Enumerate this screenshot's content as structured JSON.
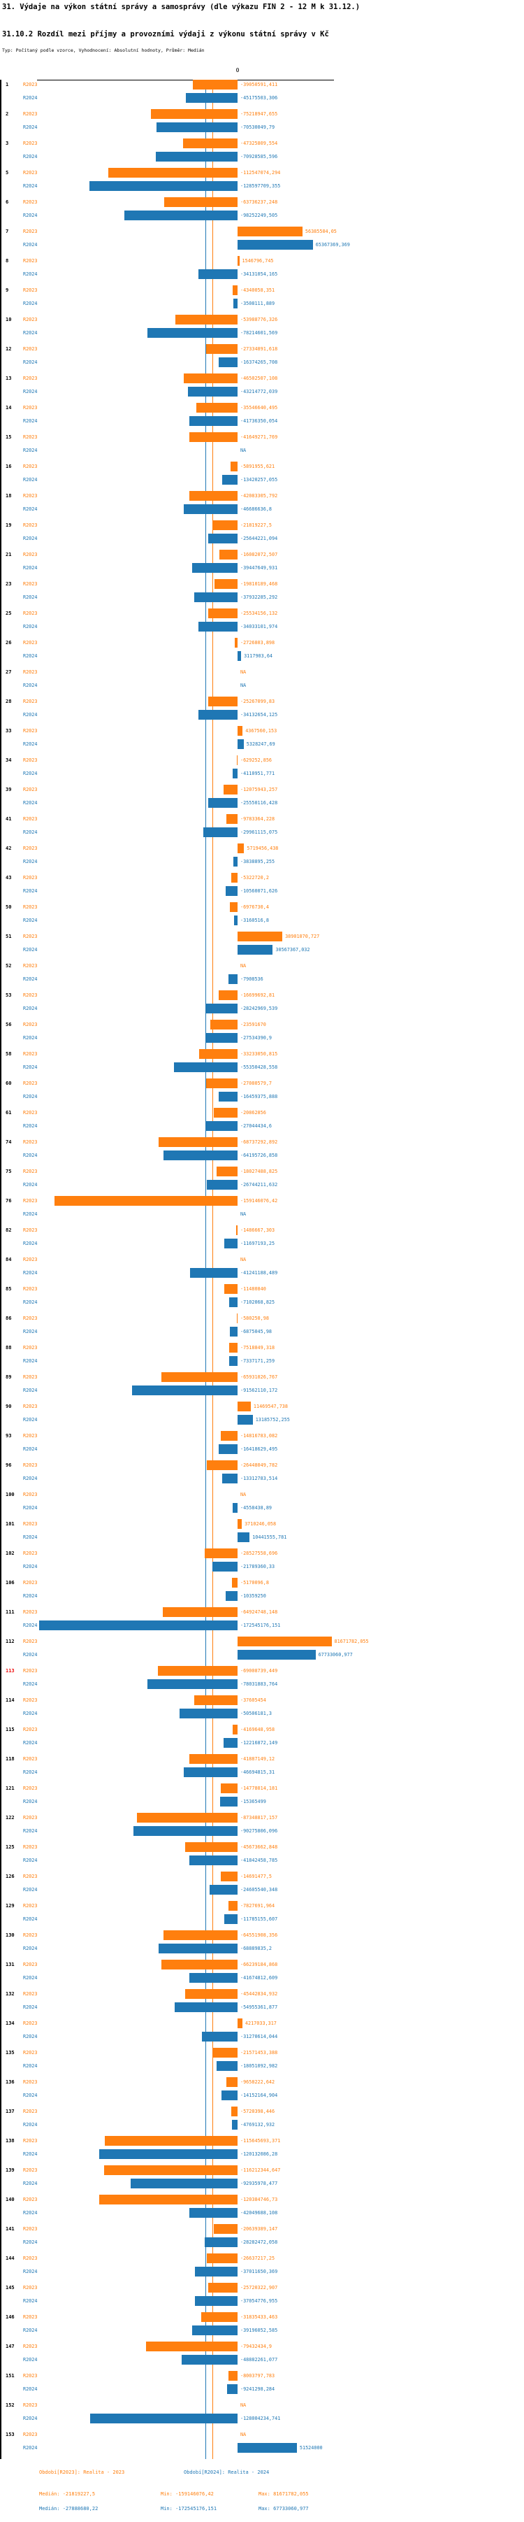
{
  "header": {
    "title": "31. Výdaje na výkon státní správy a samosprávy (dle výkazu FIN 2 - 12 M k 31.12.)",
    "subtitle": "31.10.2 Rozdíl mezi příjmy a provozními výdaji z výkonu státní správy v Kč",
    "meta_line": "Typ: Počítaný podle vzorce, Vyhodnocení: Absolutní hodnoty, Průměr: Medián"
  },
  "colors": {
    "r2023": "#ff7f0e",
    "r2024": "#1f77b4",
    "axis": "#000000",
    "highlight_row": "#ee1111"
  },
  "chart_data": {
    "type": "bar",
    "orientation": "horizontal",
    "unit": "Kč",
    "series_names": [
      "R2023",
      "R2024"
    ],
    "na": "NA",
    "zero_label": "0",
    "highlighted_ids": [
      "113"
    ],
    "medians": {
      "R2023": -21819227.5,
      "R2024": -27888680.22
    },
    "rows": [
      {
        "id": "1",
        "R2023": "-39050591,411",
        "R2024": "-45175503,306"
      },
      {
        "id": "2",
        "R2023": "-75218947,655",
        "R2024": "-70530049,79"
      },
      {
        "id": "3",
        "R2023": "-47325809,554",
        "R2024": "-70928585,596"
      },
      {
        "id": "5",
        "R2023": "-112547074,294",
        "R2024": "-128597709,355"
      },
      {
        "id": "6",
        "R2023": "-63736237,248",
        "R2024": "-98252249,505"
      },
      {
        "id": "7",
        "R2023": "56385504,05",
        "R2024": "65367369,369"
      },
      {
        "id": "8",
        "R2023": "1546796,745",
        "R2024": "-34131054,165"
      },
      {
        "id": "9",
        "R2023": "-4340058,351",
        "R2024": "-3508111,889"
      },
      {
        "id": "10",
        "R2023": "-53988776,326",
        "R2024": "-78214601,569"
      },
      {
        "id": "12",
        "R2023": "-27334891,618",
        "R2024": "-16374265,708"
      },
      {
        "id": "13",
        "R2023": "-46502507,108",
        "R2024": "-43214772,039"
      },
      {
        "id": "14",
        "R2023": "-35546640,495",
        "R2024": "-41736350,054"
      },
      {
        "id": "15",
        "R2023": "-41649271,769",
        "R2024": "NA"
      },
      {
        "id": "16",
        "R2023": "-5891955,621",
        "R2024": "-13420257,055"
      },
      {
        "id": "18",
        "R2023": "-42083305,792",
        "R2024": "-46686636,8"
      },
      {
        "id": "19",
        "R2023": "-21819227,5",
        "R2024": "-25644221,094"
      },
      {
        "id": "21",
        "R2023": "-16082072,507",
        "R2024": "-39447649,931"
      },
      {
        "id": "23",
        "R2023": "-19810189,468",
        "R2024": "-37932285,292"
      },
      {
        "id": "25",
        "R2023": "-25534156,132",
        "R2024": "-34033101,974"
      },
      {
        "id": "26",
        "R2023": "-2726803,898",
        "R2024": "3117903,64"
      },
      {
        "id": "27",
        "R2023": "NA",
        "R2024": "NA"
      },
      {
        "id": "28",
        "R2023": "-25267099,83",
        "R2024": "-34132654,125"
      },
      {
        "id": "33",
        "R2023": "4367560,153",
        "R2024": "5328247,69"
      },
      {
        "id": "34",
        "R2023": "-629252,856",
        "R2024": "-4110951,771"
      },
      {
        "id": "39",
        "R2023": "-12075943,257",
        "R2024": "-25550116,428"
      },
      {
        "id": "41",
        "R2023": "-9783364,228",
        "R2024": "-29961115,075"
      },
      {
        "id": "42",
        "R2023": "5719456,438",
        "R2024": "-3838895,255"
      },
      {
        "id": "43",
        "R2023": "-5322720,2",
        "R2024": "-10560071,626"
      },
      {
        "id": "50",
        "R2023": "-6976730,4",
        "R2024": "-3160516,8"
      },
      {
        "id": "51",
        "R2023": "38901070,727",
        "R2024": "30567367,032"
      },
      {
        "id": "52",
        "R2023": "NA",
        "R2024": "-7908536"
      },
      {
        "id": "53",
        "R2023": "-16699692,81",
        "R2024": "-28242969,539"
      },
      {
        "id": "56",
        "R2023": "-23591670",
        "R2024": "-27534390,9"
      },
      {
        "id": "58",
        "R2023": "-33233050,815",
        "R2024": "-55350428,558"
      },
      {
        "id": "60",
        "R2023": "-27080579,7",
        "R2024": "-16459375,888"
      },
      {
        "id": "61",
        "R2023": "-20862856",
        "R2024": "-27044434,6"
      },
      {
        "id": "74",
        "R2023": "-68737292,892",
        "R2024": "-64195726,858"
      },
      {
        "id": "75",
        "R2023": "-18027488,825",
        "R2024": "-26744211,632"
      },
      {
        "id": "76",
        "R2023": "-159146076,42",
        "R2024": "NA"
      },
      {
        "id": "82",
        "R2023": "-1486667,303",
        "R2024": "-11697193,25"
      },
      {
        "id": "84",
        "R2023": "NA",
        "R2024": "-41241188,489"
      },
      {
        "id": "85",
        "R2023": "-11480840",
        "R2024": "-7102068,825"
      },
      {
        "id": "86",
        "R2023": "-580250,98",
        "R2024": "-6875045,98"
      },
      {
        "id": "88",
        "R2023": "-7518849,318",
        "R2024": "-7337171,259"
      },
      {
        "id": "89",
        "R2023": "-65931026,767",
        "R2024": "-91562110,172"
      },
      {
        "id": "90",
        "R2023": "11469547,738",
        "R2024": "13185752,255"
      },
      {
        "id": "93",
        "R2023": "-14816783,082",
        "R2024": "-16418629,495"
      },
      {
        "id": "96",
        "R2023": "-26448049,782",
        "R2024": "-13312783,514"
      },
      {
        "id": "100",
        "R2023": "NA",
        "R2024": "-4558438,89"
      },
      {
        "id": "101",
        "R2023": "3710246,058",
        "R2024": "10441555,781"
      },
      {
        "id": "102",
        "R2023": "-28527558,696",
        "R2024": "-21789360,33"
      },
      {
        "id": "106",
        "R2023": "-5170096,8",
        "R2024": "-10359250"
      },
      {
        "id": "111",
        "R2023": "-64924748,148",
        "R2024": "-172545176,151"
      },
      {
        "id": "112",
        "R2023": "81671782,055",
        "R2024": "67733060,977"
      },
      {
        "id": "113",
        "R2023": "-69008739,449",
        "R2024": "-78031883,764"
      },
      {
        "id": "114",
        "R2023": "-37605454",
        "R2024": "-50506181,3"
      },
      {
        "id": "115",
        "R2023": "-4169648,958",
        "R2024": "-12216872,149"
      },
      {
        "id": "118",
        "R2023": "-41887149,12",
        "R2024": "-46694815,31"
      },
      {
        "id": "121",
        "R2023": "-14778014,181",
        "R2024": "-15365499"
      },
      {
        "id": "122",
        "R2023": "-87348817,157",
        "R2024": "-90275806,096"
      },
      {
        "id": "125",
        "R2023": "-45673662,848",
        "R2024": "-41842458,785"
      },
      {
        "id": "126",
        "R2023": "-14691477,5",
        "R2024": "-24605540,348"
      },
      {
        "id": "129",
        "R2023": "-7827691,964",
        "R2024": "-11785155,607"
      },
      {
        "id": "130",
        "R2023": "-64551908,356",
        "R2024": "-68889835,2"
      },
      {
        "id": "131",
        "R2023": "-66239184,868",
        "R2024": "-41674812,609"
      },
      {
        "id": "132",
        "R2023": "-45442834,932",
        "R2024": "-54955361,877"
      },
      {
        "id": "134",
        "R2023": "4217033,317",
        "R2024": "-31270614,044"
      },
      {
        "id": "135",
        "R2023": "-21571453,388",
        "R2024": "-18051092,982"
      },
      {
        "id": "136",
        "R2023": "-9658222,642",
        "R2024": "-14152164,904"
      },
      {
        "id": "137",
        "R2023": "-5720398,446",
        "R2024": "-4769132,932"
      },
      {
        "id": "138",
        "R2023": "-115645693,371",
        "R2024": "-120132086,28"
      },
      {
        "id": "139",
        "R2023": "-116212344,647",
        "R2024": "-92935978,477"
      },
      {
        "id": "140",
        "R2023": "-120384746,73",
        "R2024": "-42049688,108"
      },
      {
        "id": "141",
        "R2023": "-20639389,147",
        "R2024": "-28282472,058"
      },
      {
        "id": "144",
        "R2023": "-26637217,25",
        "R2024": "-37011650,369"
      },
      {
        "id": "145",
        "R2023": "-25720322,907",
        "R2024": "-37054776,955"
      },
      {
        "id": "146",
        "R2023": "-31835433,463",
        "R2024": "-39196052,585"
      },
      {
        "id": "147",
        "R2023": "-79432434,9",
        "R2024": "-48882261,077"
      },
      {
        "id": "151",
        "R2023": "-8003797,783",
        "R2024": "-9241298,284"
      },
      {
        "id": "152",
        "R2023": "NA",
        "R2024": "-128004234,741"
      },
      {
        "id": "153",
        "R2023": "NA",
        "R2024": "51524000"
      }
    ]
  },
  "footer": {
    "period_r2023": "Období[R2023]: Realita - 2023",
    "period_r2024": "Období[R2024]: Realita - 2024",
    "stats_r2023": {
      "median": "Medián: -21819227,5",
      "min": "Min: -159146076,42",
      "max": "Max: 81671782,055"
    },
    "stats_r2024": {
      "median": "Medián: -27888680,22",
      "min": "Min: -172545176,151",
      "max": "Max: 67733060,977"
    }
  }
}
